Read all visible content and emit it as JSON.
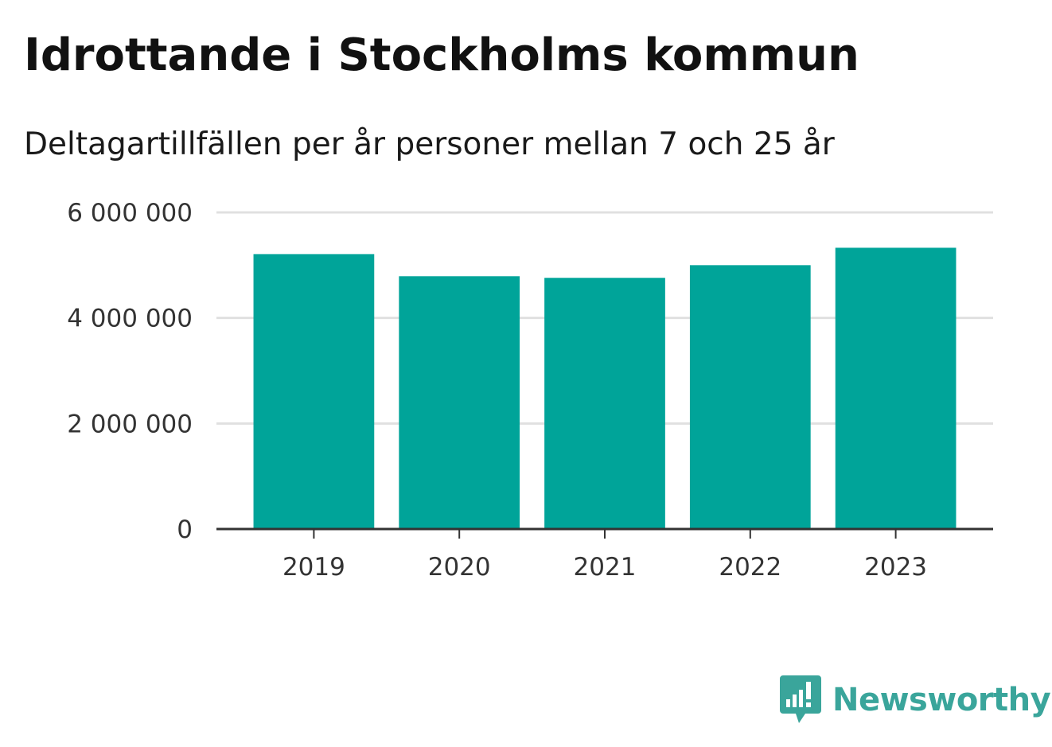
{
  "chart_data": {
    "type": "bar",
    "title": "Idrottande i Stockholms kommun",
    "subtitle": "Deltagartillfällen per år personer mellan 7 och 25 år",
    "categories": [
      "2019",
      "2020",
      "2021",
      "2022",
      "2023"
    ],
    "series": [
      {
        "values": [
          5210000,
          4790000,
          4760000,
          5000000,
          5330000
        ]
      }
    ],
    "ylim": [
      0,
      6000000
    ],
    "yticks": [
      0,
      2000000,
      4000000,
      6000000
    ],
    "ytick_labels": [
      "0",
      "2 000 000",
      "4 000 000",
      "6 000 000"
    ],
    "xlabel": "",
    "ylabel": "",
    "grid": true,
    "legend": "none",
    "bar_color": "#00a499"
  },
  "brand": {
    "name": "Newsworthy",
    "logo_icon": "newsworthy-logo-icon",
    "color": "#3aa59b"
  }
}
